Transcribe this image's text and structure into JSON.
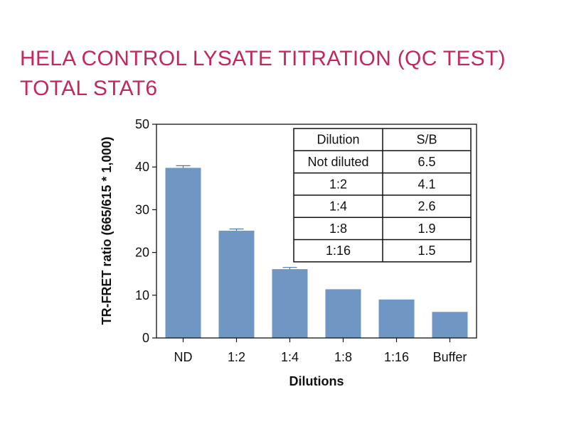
{
  "title_lines": [
    "HELA CONTROL LYSATE TITRATION (QC TEST)",
    "TOTAL STAT6"
  ],
  "colors": {
    "title": "#c4275e",
    "bar": "#7097c3",
    "error_bar": "#4a78ad",
    "axis": "#111111"
  },
  "chart_data": {
    "type": "bar",
    "categories": [
      "ND",
      "1:2",
      "1:4",
      "1:8",
      "1:16",
      "Buffer"
    ],
    "values": [
      39.8,
      25.1,
      16.1,
      11.4,
      9.0,
      6.1
    ],
    "errors": [
      0.5,
      0.4,
      0.4,
      0,
      0,
      0
    ],
    "xlabel": "Dilutions",
    "ylabel": "TR-FRET ratio (665/615 * 1,000)",
    "ylim": [
      0,
      50
    ],
    "yticks": [
      0,
      10,
      20,
      30,
      40,
      50
    ],
    "grid": false
  },
  "table": {
    "headers": [
      "Dilution",
      "S/B"
    ],
    "rows": [
      [
        "Not diluted",
        "6.5"
      ],
      [
        "1:2",
        "4.1"
      ],
      [
        "1:4",
        "2.6"
      ],
      [
        "1:8",
        "1.9"
      ],
      [
        "1:16",
        "1.5"
      ]
    ]
  }
}
